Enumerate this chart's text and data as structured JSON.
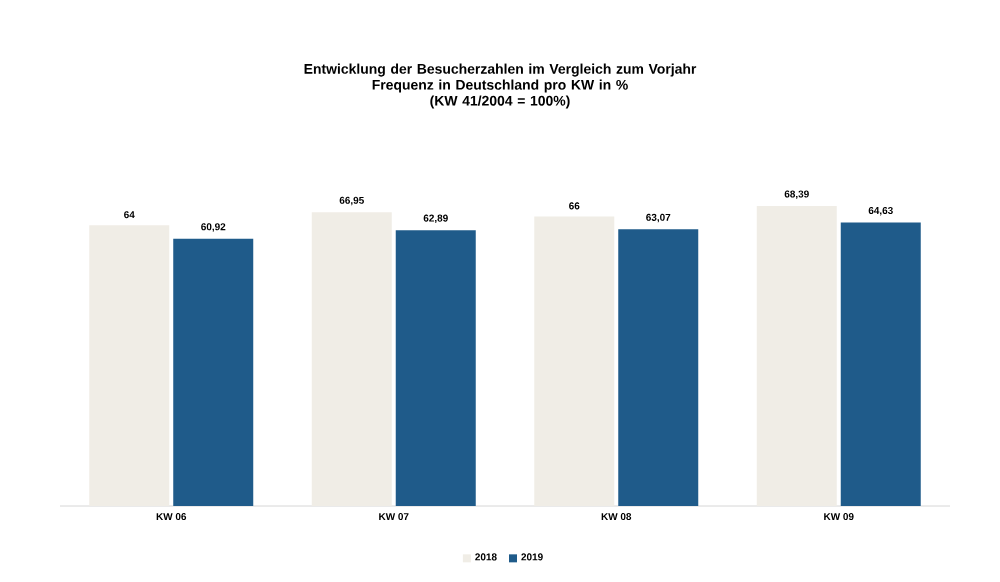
{
  "chart_data": {
    "type": "bar",
    "title": "Entwicklung der Besucherzahlen im Vergleich zum Vorjahr",
    "subtitle": "Frequenz in Deutschland pro KW in %",
    "annotations": [
      "(KW 41/2004 = 100%)"
    ],
    "categories": [
      "KW 06",
      "KW 07",
      "KW 08",
      "KW 09"
    ],
    "series": [
      {
        "name": "2018",
        "color": "#f0ede6",
        "values": [
          64,
          66.95,
          66,
          68.39
        ],
        "value_labels": [
          "64",
          "66,95",
          "66",
          "68,39"
        ]
      },
      {
        "name": "2019",
        "color": "#1f5b8a",
        "values": [
          60.92,
          62.89,
          63.07,
          64.63
        ],
        "value_labels": [
          "60,92",
          "62,89",
          "63,07",
          "64,63"
        ]
      }
    ],
    "tick_labels": "x",
    "legend": "bottom"
  }
}
